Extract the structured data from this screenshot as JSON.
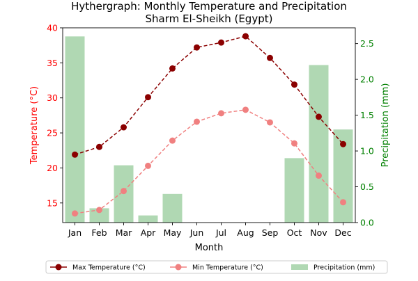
{
  "chart_data": {
    "type": "bar+line",
    "title": "Hythergraph: Monthly Temperature and Precipitation\nSharm El-Sheikh (Egypt)",
    "xlabel": "Month",
    "ylabel_left": "Temperature (°C)",
    "ylabel_right": "Precipitation (mm)",
    "categories": [
      "Jan",
      "Feb",
      "Mar",
      "Apr",
      "May",
      "Jun",
      "Jul",
      "Aug",
      "Sep",
      "Oct",
      "Nov",
      "Dec"
    ],
    "ylim_left": [
      12.2,
      40.0
    ],
    "ylim_right": [
      0,
      2.72
    ],
    "yticks_left": [
      15,
      20,
      25,
      30,
      35,
      40
    ],
    "yticks_right": [
      0.0,
      0.5,
      1.0,
      1.5,
      2.0,
      2.5
    ],
    "grid": false,
    "legend_position": "bottom",
    "series": [
      {
        "name": "Max Temperature (°C)",
        "kind": "line",
        "axis": "left",
        "color": "#8b0000",
        "values": [
          21.9,
          23.0,
          25.8,
          30.1,
          34.2,
          37.2,
          37.9,
          38.8,
          35.7,
          31.9,
          27.3,
          23.4
        ]
      },
      {
        "name": "Min Temperature (°C)",
        "kind": "line",
        "axis": "left",
        "color": "#f08080",
        "values": [
          13.5,
          14.0,
          16.7,
          20.3,
          23.9,
          26.6,
          27.8,
          28.3,
          26.5,
          23.5,
          18.9,
          15.1
        ]
      },
      {
        "name": "Precipitation (mm)",
        "kind": "bar",
        "axis": "right",
        "color": "#b0d8b3",
        "values": [
          2.6,
          0.2,
          0.8,
          0.1,
          0.4,
          0.0,
          0.0,
          0.0,
          0.0,
          0.9,
          2.2,
          1.3
        ]
      }
    ],
    "colors": {
      "left_axis": "#ff0000",
      "right_axis": "#008000"
    }
  }
}
